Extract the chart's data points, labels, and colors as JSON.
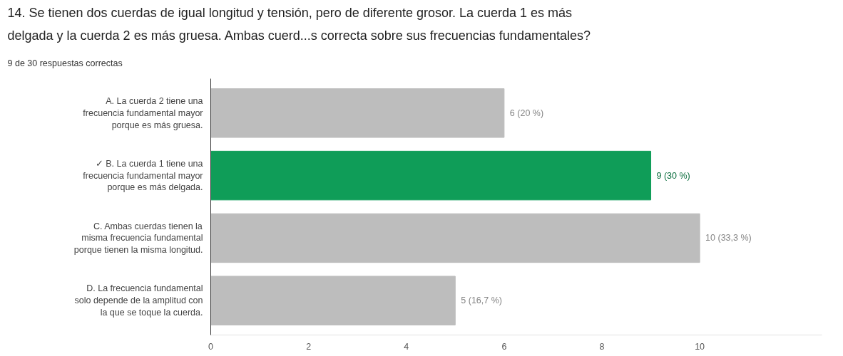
{
  "chart_data": {
    "type": "bar",
    "orientation": "horizontal",
    "title": "14. Se tienen dos cuerdas de igual longitud y tensión, pero de diferente grosor. La cuerda 1 es más\ndelgada y la cuerda 2 es más gruesa. Ambas cuerd...s correcta sobre sus frecuencias fundamentales?",
    "subtitle": "9 de 30 respuestas correctas",
    "categories": [
      "A. La cuerda 2 tiene una\nfrecuencia fundamental mayor\nporque es más gruesa.",
      "✓ B. La cuerda 1 tiene una\nfrecuencia fundamental mayor\nporque es más delgada.",
      "C. Ambas cuerdas tienen la\nmisma frecuencia fundamental\nporque tienen la misma longitud.",
      "D. La frecuencia fundamental\nsolo depende de la amplitud con\nla que se toque la cuerda."
    ],
    "values": [
      6,
      9,
      10,
      5
    ],
    "colors": [
      "#bdbdbd",
      "#0f9d58",
      "#bdbdbd",
      "#bdbdbd"
    ],
    "value_labels": [
      "6 (20 %)",
      "9 (30 %)",
      "10 (33,3 %)",
      "5 (16,7 %)"
    ],
    "xlim": [
      0,
      12.5
    ],
    "xticks": [
      0,
      2,
      4,
      6,
      8,
      10
    ],
    "grid": false
  }
}
